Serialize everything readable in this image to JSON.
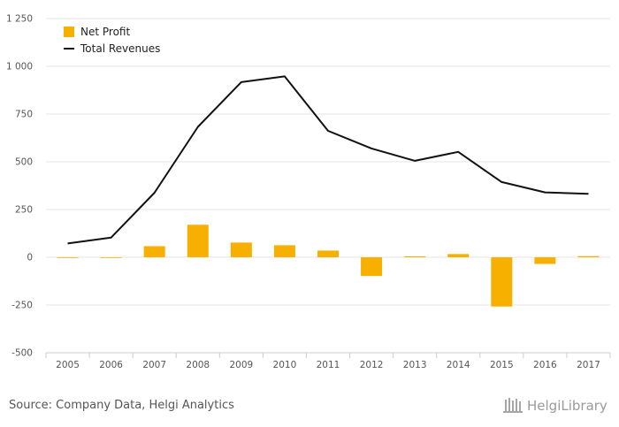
{
  "chart_data": {
    "type": "bar",
    "categories": [
      "2005",
      "2006",
      "2007",
      "2008",
      "2009",
      "2010",
      "2011",
      "2012",
      "2013",
      "2014",
      "2015",
      "2016",
      "2017"
    ],
    "series": [
      {
        "name": "Net Profit",
        "type": "bar",
        "color": "#f7b000",
        "values": [
          -2,
          -3,
          58,
          170,
          77,
          63,
          35,
          -98,
          5,
          17,
          -258,
          -35,
          6
        ]
      },
      {
        "name": "Total Revenues",
        "type": "line",
        "color": "#111111",
        "values": [
          72,
          103,
          338,
          683,
          917,
          947,
          662,
          570,
          505,
          552,
          394,
          340,
          332
        ]
      }
    ],
    "yticks": [
      "1 250",
      "1 000",
      "750",
      "500",
      "250",
      "0",
      "-250",
      "-500"
    ],
    "ylim": [
      -500,
      1250
    ],
    "grid": true,
    "legend_position": "top-left",
    "title": "",
    "xlabel": "",
    "ylabel": ""
  },
  "footer": {
    "source": "Source: Company Data, Helgi Analytics",
    "logo_text": "HelgiLibrary"
  }
}
